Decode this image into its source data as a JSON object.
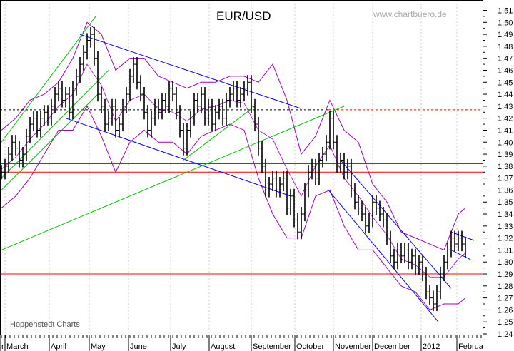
{
  "chart_data": {
    "type": "ohlc-bar",
    "title": "EUR/USD",
    "watermark": "www.chartbuero.de",
    "source": "Hoppenstedt Charts",
    "ylim": [
      1.24,
      1.51
    ],
    "yticks": [
      "1.24",
      "1.25",
      "1.26",
      "1.27",
      "1.28",
      "1.29",
      "1.30",
      "1.31",
      "1.32",
      "1.33",
      "1.34",
      "1.35",
      "1.36",
      "1.37",
      "1.38",
      "1.39",
      "1.40",
      "1.41",
      "1.42",
      "1.43",
      "1.44",
      "1.45",
      "1.46",
      "1.47",
      "1.48",
      "1.49",
      "1.50",
      "1.51"
    ],
    "months": [
      {
        "label": "r",
        "index": -1
      },
      {
        "label": "March",
        "index": 1
      },
      {
        "label": "April",
        "index": 13.4
      },
      {
        "label": "May",
        "index": 24.6
      },
      {
        "label": "June",
        "index": 35.6
      },
      {
        "label": "July",
        "index": 47.4
      },
      {
        "label": "August",
        "index": 58.2
      },
      {
        "label": "September",
        "index": 70
      },
      {
        "label": "October",
        "index": 82.2
      },
      {
        "label": "November",
        "index": 93
      },
      {
        "label": "December",
        "index": 104
      },
      {
        "label": "2012",
        "index": 117.6
      },
      {
        "label": "Februa",
        "index": 127.6
      }
    ],
    "xlim_index": [
      0,
      135
    ],
    "bar_range": 0.012,
    "closes": [
      1.375,
      1.38,
      1.39,
      1.4,
      1.395,
      1.385,
      1.39,
      1.405,
      1.415,
      1.42,
      1.41,
      1.42,
      1.425,
      1.42,
      1.43,
      1.44,
      1.445,
      1.435,
      1.44,
      1.425,
      1.445,
      1.455,
      1.465,
      1.475,
      1.485,
      1.49,
      1.47,
      1.44,
      1.43,
      1.415,
      1.42,
      1.43,
      1.41,
      1.415,
      1.43,
      1.44,
      1.455,
      1.465,
      1.45,
      1.44,
      1.425,
      1.41,
      1.42,
      1.43,
      1.425,
      1.435,
      1.43,
      1.445,
      1.44,
      1.425,
      1.41,
      1.395,
      1.41,
      1.42,
      1.435,
      1.43,
      1.44,
      1.42,
      1.43,
      1.415,
      1.425,
      1.43,
      1.42,
      1.435,
      1.44,
      1.445,
      1.435,
      1.44,
      1.445,
      1.45,
      1.43,
      1.415,
      1.395,
      1.38,
      1.36,
      1.365,
      1.37,
      1.36,
      1.365,
      1.37,
      1.345,
      1.355,
      1.335,
      1.325,
      1.34,
      1.36,
      1.375,
      1.38,
      1.37,
      1.385,
      1.39,
      1.4,
      1.42,
      1.4,
      1.38,
      1.385,
      1.375,
      1.38,
      1.36,
      1.35,
      1.345,
      1.34,
      1.33,
      1.335,
      1.35,
      1.345,
      1.34,
      1.335,
      1.32,
      1.305,
      1.3,
      1.31,
      1.305,
      1.31,
      1.3,
      1.305,
      1.295,
      1.3,
      1.29,
      1.275,
      1.27,
      1.265,
      1.275,
      1.29,
      1.3,
      1.31,
      1.32,
      1.315,
      1.32,
      1.315,
      1.31
    ],
    "bollinger": {
      "index": [
        0,
        4,
        8,
        12,
        16,
        20,
        24,
        28,
        32,
        36,
        40,
        44,
        48,
        52,
        56,
        60,
        64,
        68,
        72,
        76,
        80,
        84,
        88,
        92,
        96,
        100,
        104,
        108,
        112,
        116,
        120,
        124,
        128,
        130
      ],
      "upper": [
        1.41,
        1.42,
        1.435,
        1.44,
        1.45,
        1.47,
        1.5,
        1.49,
        1.46,
        1.47,
        1.47,
        1.455,
        1.45,
        1.445,
        1.45,
        1.45,
        1.455,
        1.455,
        1.45,
        1.465,
        1.435,
        1.39,
        1.405,
        1.435,
        1.41,
        1.4,
        1.365,
        1.35,
        1.325,
        1.32,
        1.315,
        1.31,
        1.34,
        1.345
      ],
      "lower": [
        1.345,
        1.355,
        1.37,
        1.39,
        1.41,
        1.41,
        1.43,
        1.405,
        1.375,
        1.4,
        1.41,
        1.4,
        1.4,
        1.39,
        1.405,
        1.41,
        1.415,
        1.41,
        1.37,
        1.34,
        1.32,
        1.32,
        1.355,
        1.36,
        1.33,
        1.31,
        1.31,
        1.295,
        1.28,
        1.275,
        1.26,
        1.265,
        1.265,
        1.27
      ]
    },
    "horizontal_lines": [
      {
        "price": 1.382,
        "color": "#ff0000",
        "style": "solid"
      },
      {
        "price": 1.375,
        "color": "#ff0000",
        "style": "solid"
      },
      {
        "price": 1.29,
        "color": "#ff0000",
        "style": "solid"
      },
      {
        "price": 1.427,
        "color": "#000000",
        "style": "dashed"
      }
    ],
    "trend_lines": [
      {
        "color": "#0000ff",
        "from": [
          22,
          1.49
        ],
        "to": [
          84,
          1.428
        ]
      },
      {
        "color": "#0000ff",
        "from": [
          18,
          1.42
        ],
        "to": [
          81,
          1.355
        ]
      },
      {
        "color": "#0000ff",
        "from": [
          95,
          1.385
        ],
        "to": [
          126,
          1.278
        ]
      },
      {
        "color": "#0000ff",
        "from": [
          91.6,
          1.36
        ],
        "to": [
          122.4,
          1.25
        ]
      },
      {
        "color": "#0000ff",
        "from": [
          126,
          1.325
        ],
        "to": [
          132.4,
          1.318
        ]
      },
      {
        "color": "#0000ff",
        "from": [
          126,
          1.31
        ],
        "to": [
          131.4,
          1.302
        ]
      },
      {
        "color": "#00c000",
        "from": [
          0,
          1.31
        ],
        "to": [
          96,
          1.43
        ]
      },
      {
        "color": "#00c000",
        "from": [
          0,
          1.4
        ],
        "to": [
          26.4,
          1.505
        ]
      },
      {
        "color": "#00c000",
        "from": [
          0,
          1.37
        ],
        "to": [
          30,
          1.46
        ]
      },
      {
        "color": "#00c000",
        "from": [
          0,
          1.36
        ],
        "to": [
          27,
          1.44
        ]
      },
      {
        "color": "#00c000",
        "from": [
          51,
          1.385
        ],
        "to": [
          71,
          1.43
        ]
      }
    ],
    "colors": {
      "bars": "#000000",
      "bands": "#a000c0",
      "grid": "#c8c8c8"
    }
  }
}
